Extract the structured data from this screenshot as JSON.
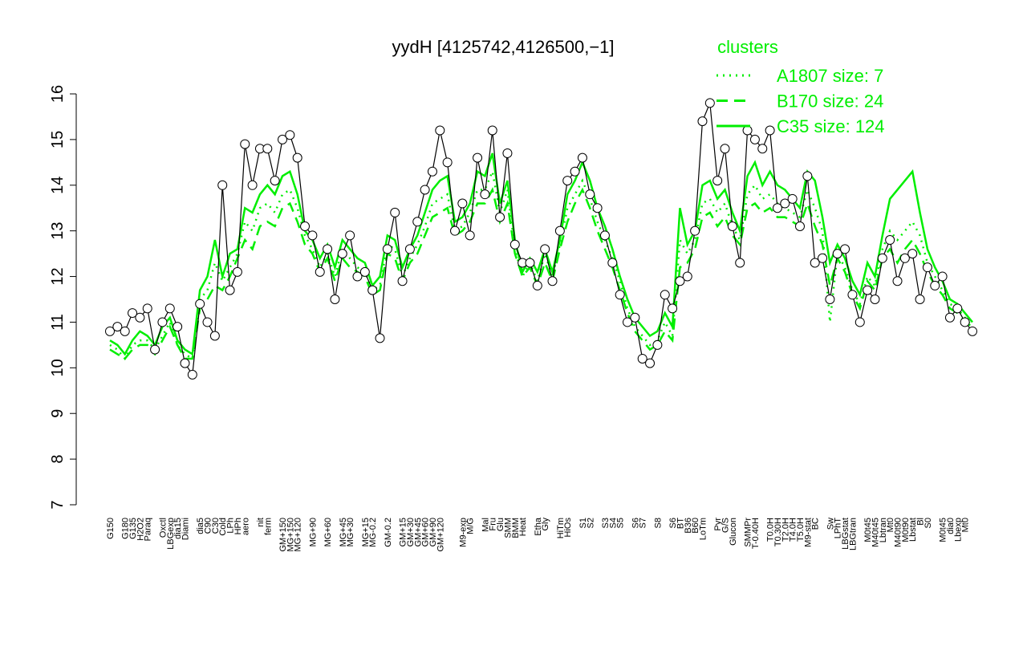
{
  "chart_data": {
    "type": "line",
    "title": "yydH [4125742,4126500,−1]",
    "legend_title": "clusters",
    "legend_position": "top-right",
    "ylim": [
      7,
      16
    ],
    "yticks": [
      7,
      8,
      9,
      10,
      11,
      12,
      13,
      14,
      15,
      16
    ],
    "color": "#000000",
    "categories": [
      "G150",
      null,
      "G180",
      "G135",
      "H2O2",
      "Paraq",
      null,
      "Oxctl",
      "LBGexp",
      "dia15",
      "Diami",
      null,
      "dia5",
      "C90",
      "C30",
      "Cold",
      "LPh",
      "HPh",
      "aero",
      null,
      "nit",
      "ferm",
      null,
      "GM+150",
      "MG+150",
      "MG+120",
      null,
      "MG+90",
      null,
      "MG+60",
      null,
      "MG+45",
      "MG+30",
      null,
      "MG+15",
      "MG-0.2",
      null,
      "GM-0.2",
      null,
      "GM+15",
      "GM+30",
      "GM+45",
      "GM+60",
      "GM+90",
      "GM+120",
      null,
      null,
      "M9-exp",
      "M/G",
      null,
      "Mal",
      "Fru",
      "Glu",
      "SMM",
      "BMM",
      "Heat",
      null,
      "Etha",
      "Gly",
      null,
      "HiTm",
      "HiOs",
      null,
      "S1",
      "S2",
      null,
      "S3",
      "S4",
      "S5",
      null,
      "S6",
      "S7",
      null,
      "S8",
      null,
      "S6",
      "BT",
      "B36",
      "B60",
      "LoTm",
      null,
      "Pyr",
      "G/S",
      "Glucon",
      null,
      "SMMPr",
      "T-0.40H",
      null,
      "T0.0H",
      "T0.30H",
      "T2.0H",
      "T4.0H",
      "T5.0H",
      "M9-stat",
      "BC",
      null,
      "Sw",
      "LPhT",
      "LBGstat",
      "LBGtran",
      null,
      "M0t45",
      "M40t45",
      "Lbtran",
      "Mt0",
      "M40t90",
      "M0t90",
      "Lbstat",
      "Bl",
      "S0",
      null,
      "M0t45",
      "dia0",
      "Lbexp",
      "Mt0",
      null
    ],
    "values": [
      10.8,
      10.9,
      10.8,
      11.2,
      11.1,
      11.3,
      10.4,
      11.0,
      11.3,
      10.9,
      10.1,
      9.85,
      11.4,
      11.0,
      10.7,
      14.0,
      11.7,
      12.1,
      14.9,
      14.0,
      14.8,
      14.8,
      14.1,
      15.0,
      15.1,
      14.6,
      13.1,
      12.9,
      12.1,
      12.6,
      11.5,
      12.5,
      12.9,
      12.0,
      12.1,
      11.7,
      10.65,
      12.6,
      13.4,
      11.9,
      12.6,
      13.2,
      13.9,
      14.3,
      15.2,
      14.5,
      13.0,
      13.6,
      12.9,
      14.6,
      13.8,
      15.2,
      13.3,
      14.7,
      12.7,
      12.3,
      12.3,
      11.8,
      12.6,
      11.9,
      13.0,
      14.1,
      14.3,
      14.6,
      13.8,
      13.5,
      12.9,
      12.3,
      11.6,
      11.0,
      11.1,
      10.2,
      10.1,
      10.5,
      11.6,
      11.3,
      11.9,
      12.0,
      13.0,
      15.4,
      15.8,
      14.1,
      14.8,
      13.1,
      12.3,
      15.2,
      15.0,
      14.8,
      15.2,
      13.5,
      13.6,
      13.7,
      13.1,
      14.2,
      12.3,
      12.4,
      11.5,
      12.5,
      12.6,
      11.6,
      11.0,
      11.7,
      11.5,
      12.4,
      12.8,
      11.9,
      12.4,
      12.5,
      11.5,
      12.2,
      11.8,
      12.0,
      11.1,
      11.3,
      11.0,
      10.8
    ],
    "series": [
      {
        "name": "A1807 size: 7",
        "color": "#00ee00",
        "dash": "dotted",
        "values": [
          10.5,
          10.4,
          10.2,
          10.5,
          10.6,
          10.6,
          10.4,
          10.7,
          11.0,
          10.5,
          10.3,
          10.2,
          11.5,
          11.7,
          12.3,
          11.9,
          12.2,
          12.5,
          13.2,
          13.0,
          13.5,
          13.6,
          13.4,
          13.8,
          13.9,
          13.5,
          12.9,
          12.6,
          12.2,
          12.5,
          12.0,
          12.6,
          12.4,
          12.2,
          12.1,
          11.7,
          11.8,
          12.7,
          12.6,
          12.0,
          12.4,
          12.7,
          13.1,
          13.6,
          13.7,
          13.8,
          13.0,
          13.1,
          13.4,
          13.9,
          13.9,
          14.3,
          13.4,
          13.9,
          12.6,
          12.0,
          12.3,
          11.9,
          12.5,
          12.0,
          12.7,
          13.5,
          13.8,
          14.1,
          13.7,
          13.2,
          12.8,
          12.4,
          11.9,
          11.3,
          10.9,
          10.7,
          10.5,
          10.6,
          11.0,
          10.7,
          12.8,
          12.5,
          12.8,
          13.6,
          13.7,
          13.4,
          13.6,
          13.1,
          12.8,
          13.8,
          14.0,
          13.7,
          13.8,
          13.6,
          13.5,
          13.4,
          13.3,
          13.9,
          13.5,
          13.0,
          11.0,
          12.5,
          12.2,
          11.7,
          11.4,
          12.0,
          11.8,
          12.6,
          13.0,
          12.8,
          13.0,
          13.2,
          12.9,
          12.3,
          12.0,
          11.7,
          11.4,
          11.3,
          11.1,
          10.9
        ]
      },
      {
        "name": "B170 size: 24",
        "color": "#00ee00",
        "dash": "dashed",
        "values": [
          10.4,
          10.3,
          10.2,
          10.4,
          10.5,
          10.5,
          10.3,
          10.6,
          10.9,
          10.5,
          10.2,
          10.2,
          11.3,
          11.5,
          11.8,
          11.7,
          12.0,
          12.4,
          12.8,
          12.6,
          13.1,
          13.2,
          13.1,
          13.5,
          13.6,
          13.2,
          12.7,
          12.5,
          12.1,
          12.4,
          11.9,
          12.4,
          12.2,
          12.1,
          12.0,
          11.6,
          11.7,
          12.5,
          12.4,
          11.9,
          12.3,
          12.5,
          12.9,
          13.3,
          13.4,
          13.5,
          12.9,
          13.0,
          13.2,
          13.6,
          13.6,
          13.9,
          13.2,
          13.6,
          12.5,
          12.0,
          12.2,
          11.8,
          12.3,
          11.9,
          12.6,
          13.2,
          13.6,
          13.9,
          13.5,
          13.0,
          12.6,
          12.2,
          11.7,
          11.2,
          10.8,
          10.6,
          10.4,
          10.5,
          10.8,
          10.6,
          12.2,
          12.3,
          12.6,
          13.3,
          13.4,
          13.1,
          13.3,
          12.9,
          12.7,
          13.5,
          13.6,
          13.4,
          13.5,
          13.3,
          13.3,
          13.2,
          13.1,
          13.6,
          13.1,
          12.7,
          11.8,
          12.4,
          12.1,
          11.6,
          11.3,
          11.9,
          11.7,
          12.4,
          12.6,
          12.3,
          12.6,
          12.8,
          12.5,
          12.1,
          11.8,
          11.6,
          11.3,
          11.2,
          11.0,
          10.9
        ]
      },
      {
        "name": "C35 size: 124",
        "color": "#00ee00",
        "dash": "solid",
        "values": [
          10.6,
          10.5,
          10.3,
          10.6,
          10.8,
          10.7,
          10.5,
          10.9,
          11.1,
          10.6,
          10.4,
          10.3,
          11.7,
          12.0,
          12.8,
          12.0,
          12.5,
          12.6,
          13.5,
          13.4,
          13.8,
          14.0,
          13.8,
          14.2,
          14.3,
          13.8,
          13.0,
          12.8,
          12.4,
          12.7,
          12.2,
          12.8,
          12.6,
          12.4,
          12.3,
          11.8,
          12.0,
          12.9,
          12.8,
          12.2,
          12.6,
          12.9,
          13.4,
          13.9,
          14.1,
          14.2,
          13.2,
          13.3,
          13.6,
          14.3,
          14.2,
          14.7,
          13.6,
          14.1,
          12.8,
          12.1,
          12.4,
          12.1,
          12.6,
          12.1,
          12.8,
          13.8,
          14.1,
          14.5,
          14.1,
          13.5,
          13.1,
          12.6,
          12.0,
          11.5,
          11.1,
          10.9,
          10.7,
          10.8,
          11.2,
          10.9,
          13.5,
          12.7,
          13.0,
          14.0,
          14.1,
          13.7,
          13.9,
          13.4,
          13.0,
          14.2,
          14.5,
          14.0,
          14.3,
          14.0,
          13.9,
          13.7,
          13.5,
          14.3,
          14.1,
          13.3,
          12.3,
          12.7,
          12.4,
          11.9,
          11.6,
          12.3,
          12.0,
          12.9,
          13.7,
          13.9,
          14.1,
          14.3,
          13.4,
          12.6,
          12.2,
          11.9,
          11.5,
          11.4,
          11.2,
          11.0
        ]
      }
    ]
  }
}
